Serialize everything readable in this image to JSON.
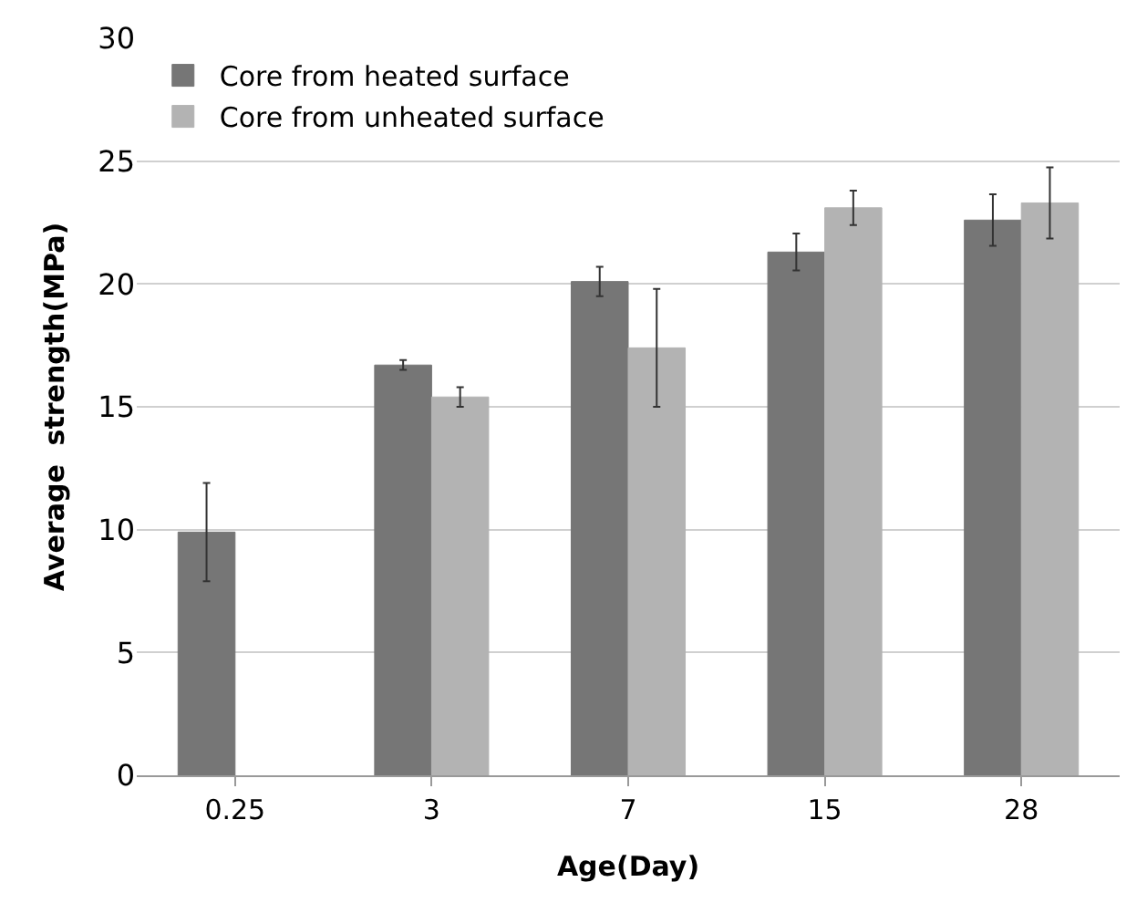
{
  "chart_data": {
    "type": "bar",
    "xlabel": "Age(Day)",
    "ylabel": "Average  strength(MPa)",
    "categories": [
      "0.25",
      "3",
      "7",
      "15",
      "28"
    ],
    "series": [
      {
        "name": "Core from heated surface",
        "color": "#767676",
        "values": [
          9.9,
          16.7,
          20.1,
          21.3,
          22.6
        ],
        "errors": [
          2.0,
          0.2,
          0.6,
          0.75,
          1.05
        ]
      },
      {
        "name": "Core from unheated surface",
        "color": "#b3b3b3",
        "values": [
          null,
          15.4,
          17.4,
          23.1,
          23.3
        ],
        "errors": [
          null,
          0.4,
          2.4,
          0.7,
          1.45
        ]
      }
    ],
    "ylim": [
      0,
      30
    ],
    "yticks": [
      0,
      5,
      10,
      15,
      20,
      25,
      30
    ],
    "grid": "y",
    "legend": "top left"
  }
}
